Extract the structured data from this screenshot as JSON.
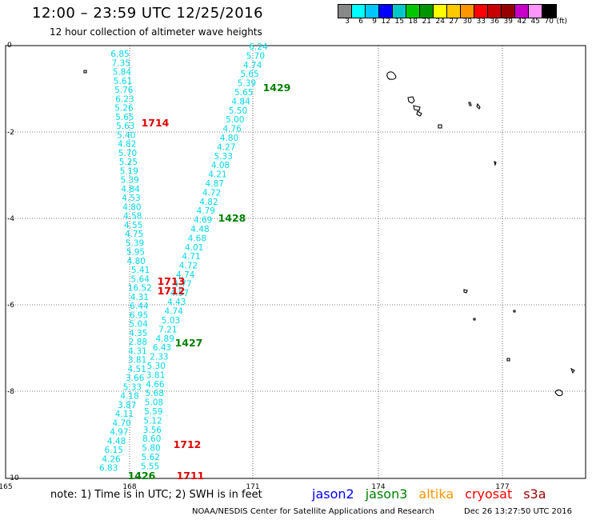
{
  "header": {
    "title": "12:00 – 23:59 UTC 12/25/2016",
    "subtitle": "12 hour collection of altimeter wave heights"
  },
  "color_scale": {
    "colors": [
      "#888888",
      "#00ffff",
      "#00c8ff",
      "#0000ff",
      "#00c8c8",
      "#00c800",
      "#009600",
      "#ffff00",
      "#ffc800",
      "#ff9600",
      "#ff0000",
      "#c80000",
      "#960000",
      "#c800c8",
      "#ff96ff",
      "#000000"
    ],
    "labels": [
      "3",
      "6",
      "9",
      "12",
      "15",
      "18",
      "21",
      "24",
      "27",
      "30",
      "33",
      "36",
      "39",
      "42",
      "45",
      "70",
      "(ft)"
    ]
  },
  "map": {
    "lon_labels": [
      "165",
      "168",
      "171",
      "174",
      "177"
    ],
    "lat_labels": [
      "0",
      "-2",
      "-4",
      "-6",
      "-8",
      "-10"
    ],
    "track_a_values": [
      "6.85",
      "7.35",
      "5.84",
      "5.61",
      "5.76",
      "6.23",
      "5.26",
      "5.65",
      "5.63",
      "5.40",
      "4.82",
      "5.70",
      "5.25",
      "5.19",
      "5.39",
      "4.84",
      "4.53",
      "4.80",
      "4.58",
      "4.55",
      "4.75",
      "5.39",
      "5.95",
      "4.80",
      "5.41",
      "5.64",
      "16.52",
      "4.31",
      "6.44",
      "6.95",
      "5.04",
      "4.35",
      "2.88",
      "4.31",
      "3.81",
      "4.51",
      "3.66",
      "5.33",
      "4.18",
      "3.87",
      "4.11",
      "4.70",
      "4.97",
      "4.48",
      "6.15",
      "4.26",
      "6.83"
    ],
    "track_b_values": [
      "6.24",
      "5.70",
      "4.74",
      "5.65",
      "5.39",
      "5.65",
      "4.84",
      "5.50",
      "5.00",
      "4.76",
      "4.80",
      "4.27",
      "5.33",
      "4.08",
      "4.21",
      "4.87",
      "4.72",
      "4.82",
      "4.79",
      "4.69",
      "4.48",
      "4.68",
      "4.01",
      "4.71",
      "4.72",
      "4.74",
      "4.77",
      "4.57",
      "4.43",
      "4.74",
      "5.03",
      "7.21",
      "4.89",
      "6.43",
      "2.33",
      "5.30",
      "3.81",
      "4.66",
      "5.68",
      "5.08",
      "5.59",
      "5.12",
      "3.56",
      "8.60",
      "5.80",
      "5.62",
      "5.55"
    ],
    "pass_labels": [
      {
        "text": "1429",
        "color": "#007f00"
      },
      {
        "text": "1714",
        "color": "#e00000"
      },
      {
        "text": "1428",
        "color": "#007f00"
      },
      {
        "text": "1713",
        "color": "#e00000"
      },
      {
        "text": "1712",
        "color": "#e00000"
      },
      {
        "text": "1427",
        "color": "#007f00"
      },
      {
        "text": "1712",
        "color": "#e00000"
      },
      {
        "text": "1426",
        "color": "#007f00"
      },
      {
        "text": "1711",
        "color": "#e00000"
      }
    ]
  },
  "footer": {
    "note": "note:  1) Time is in UTC;  2) SWH is in feet",
    "satellites": [
      {
        "name": "jason2",
        "color": "#0000ff"
      },
      {
        "name": "jason3",
        "color": "#008000"
      },
      {
        "name": "altika",
        "color": "#ff9600"
      },
      {
        "name": "cryosat",
        "color": "#ff0000"
      },
      {
        "name": "s3a",
        "color": "#960000"
      }
    ],
    "credit": "NOAA/NESDIS Center for Satellite Applications and Research",
    "timestamp": "Dec 26 13:27:50 UTC 2016"
  }
}
